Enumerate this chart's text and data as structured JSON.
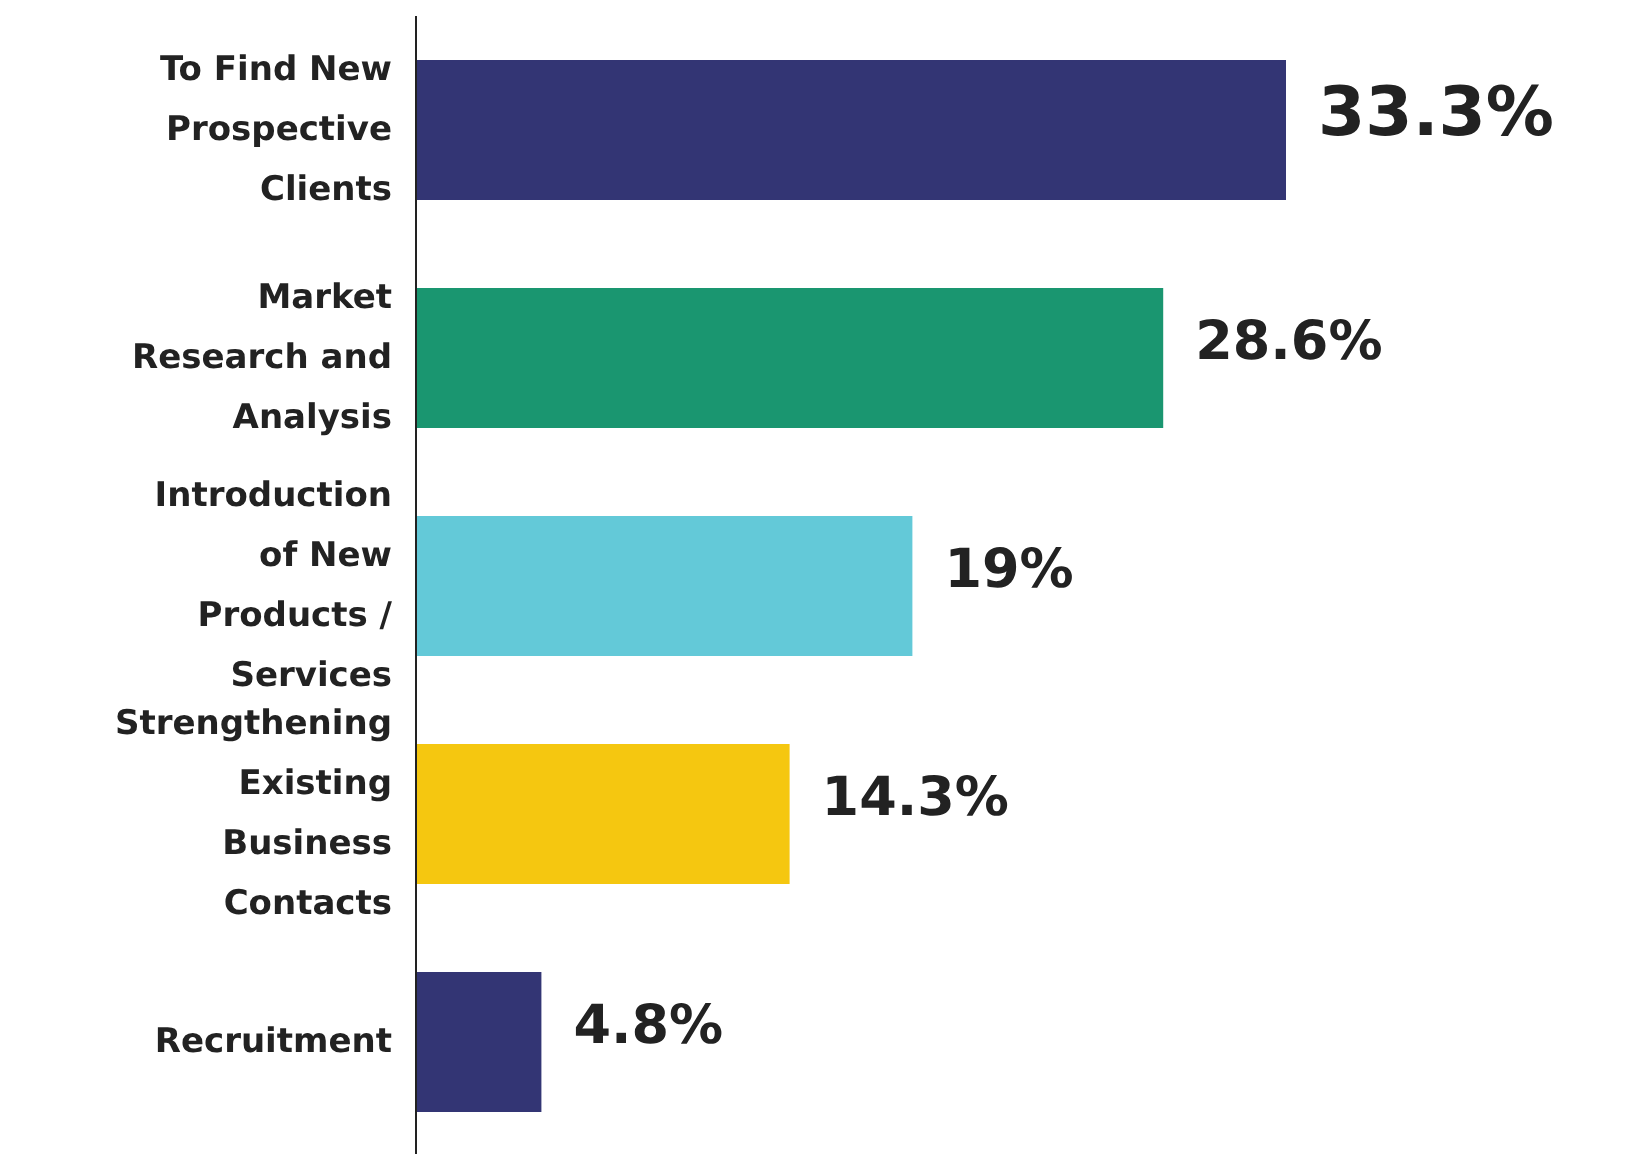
{
  "chart_data": {
    "type": "bar",
    "orientation": "horizontal",
    "categories": [
      "To Find New Prospective Clients",
      "Market Research and Analysis",
      "Introduction of New Products / Services",
      "Strengthening Existing Business Contacts",
      "Recruitment"
    ],
    "values": [
      33.3,
      28.6,
      19,
      14.3,
      4.8
    ],
    "colors": [
      "#333574",
      "#1a9670",
      "#63c9d8",
      "#f5c710",
      "#333574"
    ],
    "value_labels": [
      "33.3%",
      "28.6%",
      "19%",
      "14.3%",
      "4.8%"
    ],
    "tick_labels": "y",
    "grid": false,
    "legend": false
  }
}
